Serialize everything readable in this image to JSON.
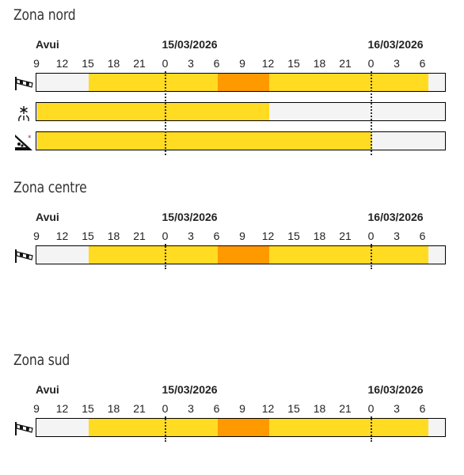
{
  "time_axis": {
    "start_label": "Avui",
    "day_labels": [
      "15/03/2026",
      "16/03/2026"
    ],
    "hours": [
      "9",
      "12",
      "15",
      "18",
      "21",
      "0",
      "3",
      "6",
      "9",
      "12",
      "15",
      "18",
      "21",
      "0",
      "3",
      "6"
    ]
  },
  "colors": {
    "none": "#f4f4f4",
    "yellow": "#ffdb22",
    "orange": "#ff9900"
  },
  "zones": [
    {
      "title": "Zona nord",
      "rows": [
        {
          "icon": "wind-icon",
          "segments": [
            {
              "from": 0,
              "to": 2,
              "level": "none"
            },
            {
              "from": 2,
              "to": 7,
              "level": "yellow"
            },
            {
              "from": 7,
              "to": 9,
              "level": "orange"
            },
            {
              "from": 9,
              "to": 15.2,
              "level": "yellow"
            },
            {
              "from": 15.2,
              "to": 16,
              "level": "none"
            }
          ]
        },
        {
          "icon": "snow-icon",
          "segments": [
            {
              "from": 0,
              "to": 9,
              "level": "yellow"
            },
            {
              "from": 9,
              "to": 16,
              "level": "none"
            }
          ]
        },
        {
          "icon": "avalanche-icon",
          "segments": [
            {
              "from": 0,
              "to": 13,
              "level": "yellow"
            },
            {
              "from": 13,
              "to": 16,
              "level": "none"
            }
          ]
        }
      ]
    },
    {
      "title": "Zona centre",
      "rows": [
        {
          "icon": "wind-icon",
          "segments": [
            {
              "from": 0,
              "to": 2,
              "level": "none"
            },
            {
              "from": 2,
              "to": 7,
              "level": "yellow"
            },
            {
              "from": 7,
              "to": 9,
              "level": "orange"
            },
            {
              "from": 9,
              "to": 15.2,
              "level": "yellow"
            },
            {
              "from": 15.2,
              "to": 16,
              "level": "none"
            }
          ]
        }
      ]
    },
    {
      "title": "Zona sud",
      "rows": [
        {
          "icon": "wind-icon",
          "segments": [
            {
              "from": 0,
              "to": 2,
              "level": "none"
            },
            {
              "from": 2,
              "to": 7,
              "level": "yellow"
            },
            {
              "from": 7,
              "to": 9,
              "level": "orange"
            },
            {
              "from": 9,
              "to": 15.2,
              "level": "yellow"
            },
            {
              "from": 15.2,
              "to": 16,
              "level": "none"
            }
          ]
        }
      ]
    }
  ]
}
